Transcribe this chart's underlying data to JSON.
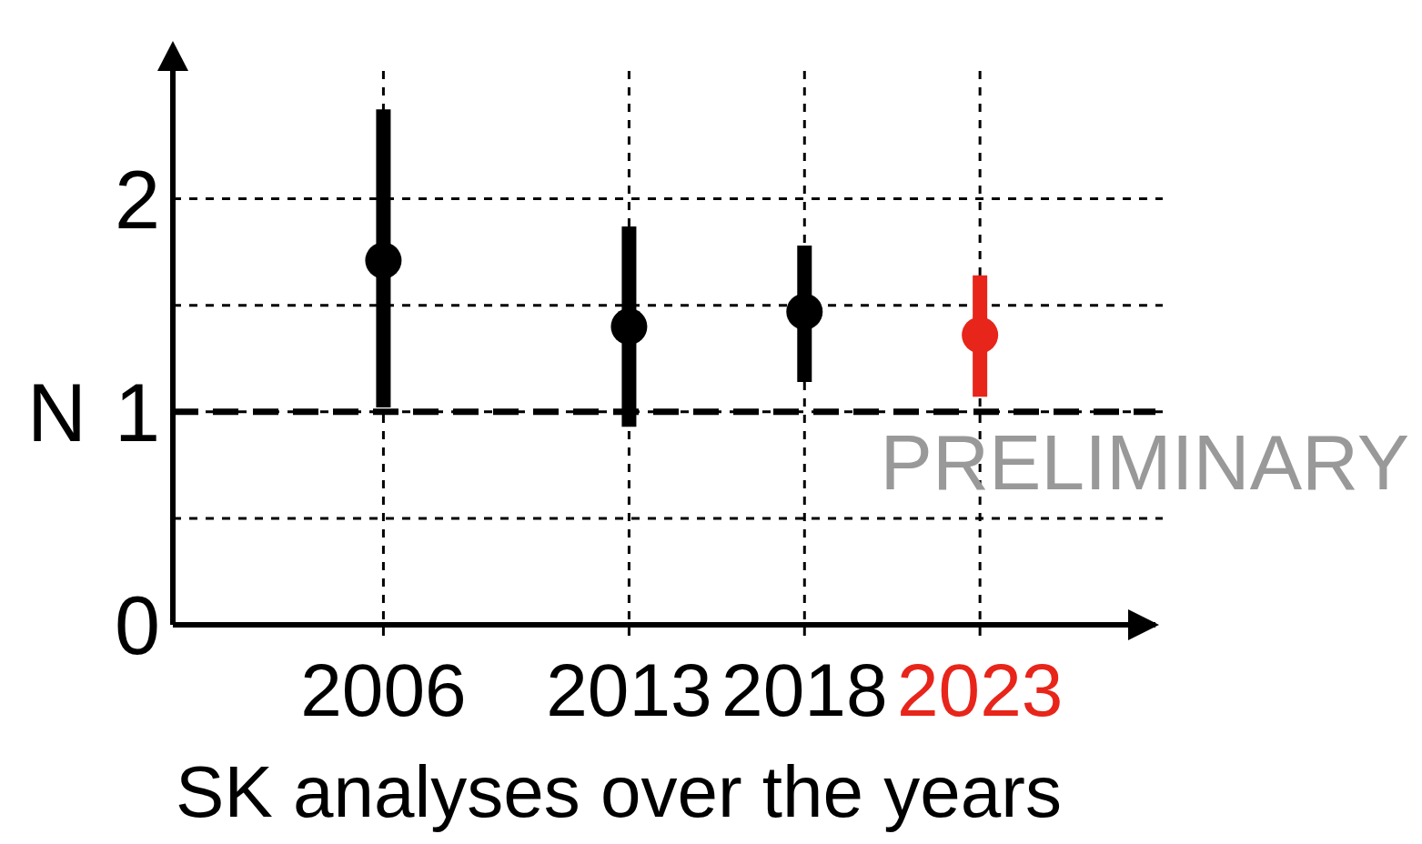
{
  "chart_data": {
    "type": "scatter",
    "xlabel": "SK analyses over the years",
    "ylabel": "N",
    "x": [
      2006,
      2013,
      2018,
      2023
    ],
    "values": [
      1.71,
      1.4,
      1.47,
      1.36
    ],
    "errors": [
      [
        1.02,
        2.42
      ],
      [
        0.93,
        1.87
      ],
      [
        1.14,
        1.78
      ],
      [
        1.07,
        1.64
      ]
    ],
    "colors": [
      "#000000",
      "#000000",
      "#000000",
      "#e8251a"
    ],
    "xlim": [
      2000,
      2028
    ],
    "xticks": [
      2006,
      2013,
      2018,
      2023
    ],
    "ylim": [
      0,
      2.6
    ],
    "yticks": [
      0,
      {
        "value": 0.5,
        "label": null
      },
      1,
      {
        "value": 1.5,
        "label": null
      },
      2
    ],
    "grid": true,
    "marker": "circle",
    "ref_lines": [
      {
        "axis": "y",
        "value": 1,
        "label": null,
        "color": "#000000",
        "line_style": "dashed"
      }
    ],
    "annotations": [
      "PRELIMINARY"
    ]
  }
}
